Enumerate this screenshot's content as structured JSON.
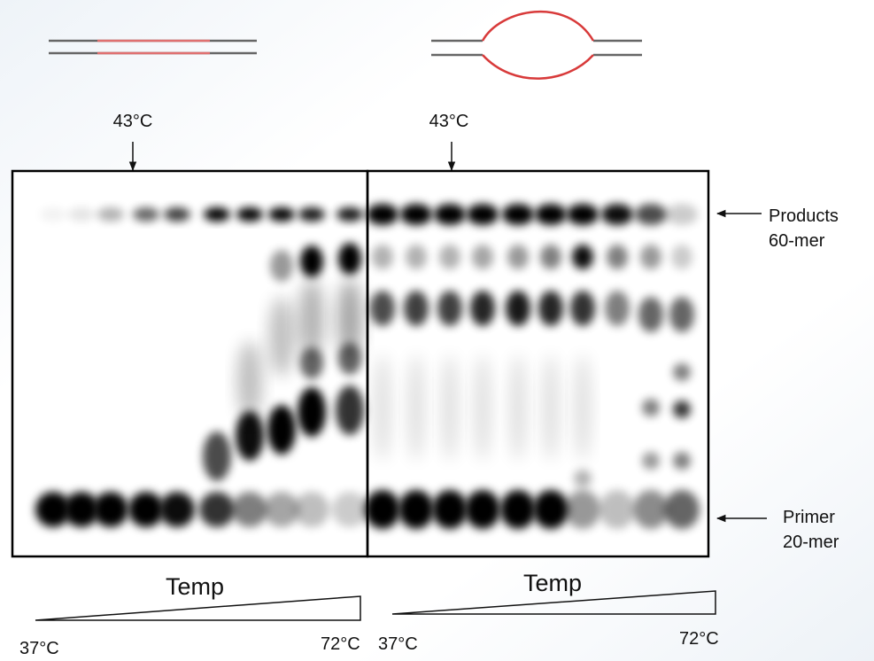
{
  "figure": {
    "left_panel": {
      "marker": "43°C",
      "gradient_label": "Temp",
      "start_label": "37°C",
      "end_label": "72°C"
    },
    "right_panel": {
      "marker": "43°C",
      "gradient_label": "Temp",
      "start_label": "37°C",
      "end_label": "72°C"
    },
    "band_labels": [
      {
        "name": "Products",
        "size": "60-mer"
      },
      {
        "name": "Primer",
        "size": "20-mer"
      }
    ]
  }
}
